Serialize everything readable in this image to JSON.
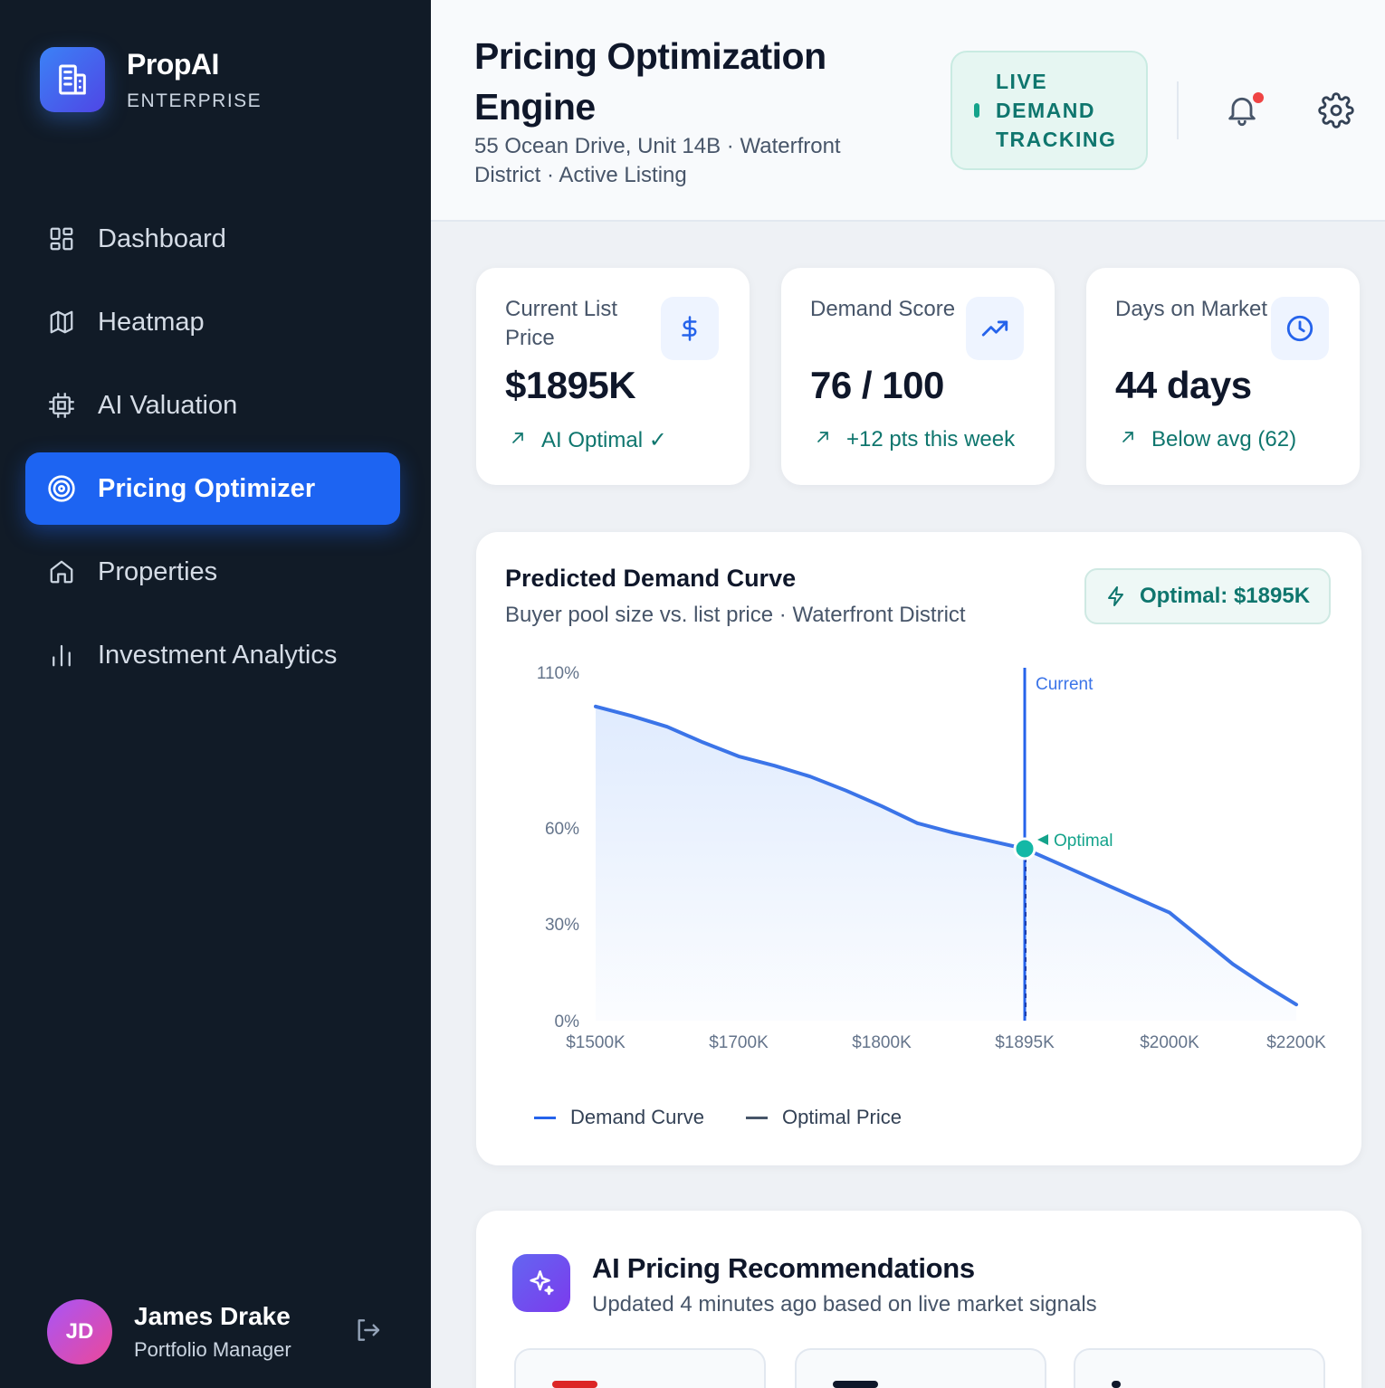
{
  "brand": {
    "name": "PropAI",
    "subtitle": "ENTERPRISE"
  },
  "nav": [
    {
      "label": "Dashboard",
      "icon": "dashboard-grid-icon",
      "active": false
    },
    {
      "label": "Heatmap",
      "icon": "map-icon",
      "active": false
    },
    {
      "label": "AI Valuation",
      "icon": "cpu-chip-icon",
      "active": false
    },
    {
      "label": "Pricing Optimizer",
      "icon": "target-icon",
      "active": true
    },
    {
      "label": "Properties",
      "icon": "home-icon",
      "active": false
    },
    {
      "label": "Investment Analytics",
      "icon": "bar-chart-icon",
      "active": false
    }
  ],
  "user": {
    "initials": "JD",
    "name": "James Drake",
    "role": "Portfolio Manager"
  },
  "header": {
    "title": "Pricing Optimization Engine",
    "subtitle": "55 Ocean Drive, Unit 14B · Waterfront District · Active Listing",
    "live_badge": "LIVE DEMAND TRACKING",
    "has_notification": true
  },
  "stats": [
    {
      "label": "Current List Price",
      "value": "$1895K",
      "trend": "AI Optimal ✓",
      "icon": "dollar-icon"
    },
    {
      "label": "Demand Score",
      "value": "76 / 100",
      "trend": "+12 pts this week",
      "icon": "trending-up-icon"
    },
    {
      "label": "Days on Market",
      "value": "44 days",
      "trend": "Below avg (62)",
      "icon": "clock-icon"
    }
  ],
  "chart": {
    "title": "Predicted Demand Curve",
    "subtitle": "Buyer pool size vs. list price · Waterfront District",
    "optimal_pill": "Optimal: $1895K",
    "current_label": "Current",
    "optimal_label": "Optimal",
    "legend": [
      {
        "name": "Demand Curve",
        "color": "#2563eb"
      },
      {
        "name": "Optimal Price",
        "color": "#475569"
      }
    ]
  },
  "chart_data": {
    "type": "area",
    "x_ticks": [
      "$1500K",
      "$1700K",
      "$1800K",
      "$1895K",
      "$2000K",
      "$2200K"
    ],
    "y_ticks": [
      "110%",
      "60%",
      "30%",
      "0%"
    ],
    "x": [
      0,
      0.25,
      0.5,
      0.75,
      1,
      1.25,
      1.5,
      1.75,
      2,
      2.25,
      2.5,
      2.75,
      3,
      3.25,
      3.5,
      3.75,
      4,
      4.25,
      4.5,
      4.75,
      5
    ],
    "x_note": "index positions along tick sequence",
    "series": [
      {
        "name": "Demand Curve",
        "values": [
          99,
          96,
          92.5,
          87.5,
          83,
          80,
          76.5,
          72,
          67,
          61.5,
          58.5,
          56,
          53.5,
          48.5,
          43.5,
          38.5,
          33.5,
          25.5,
          17.5,
          11,
          5
        ]
      }
    ],
    "current_x": "$1895K",
    "optimal_x": "$1895K",
    "optimal_y": 53.5,
    "ylim": [
      0,
      110
    ]
  },
  "reco": {
    "title": "AI Pricing Recommendations",
    "subtitle": "Updated 4 minutes ago based on live market signals"
  }
}
